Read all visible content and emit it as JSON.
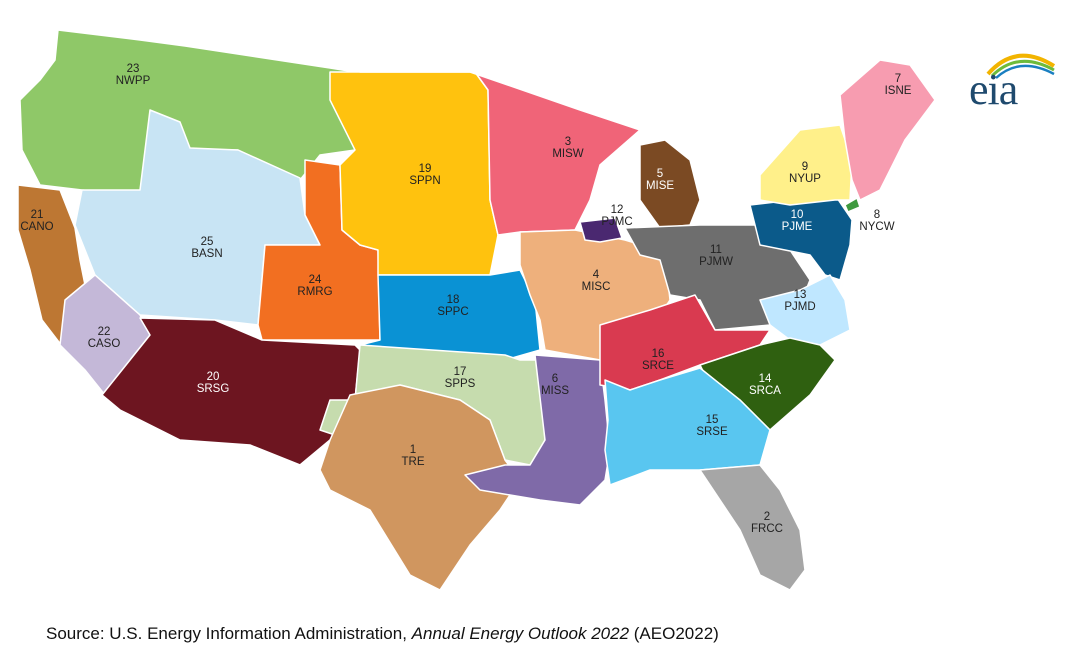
{
  "regions": [
    {
      "id": "1",
      "code": "TRE",
      "color": "#d0965f"
    },
    {
      "id": "2",
      "code": "FRCC",
      "color": "#a6a6a6"
    },
    {
      "id": "3",
      "code": "MISW",
      "color": "#f06478"
    },
    {
      "id": "4",
      "code": "MISC",
      "color": "#eeb07c"
    },
    {
      "id": "5",
      "code": "MISE",
      "color": "#7b4a23"
    },
    {
      "id": "6",
      "code": "MISS",
      "color": "#7f6aa8"
    },
    {
      "id": "7",
      "code": "ISNE",
      "color": "#f79cb0"
    },
    {
      "id": "8",
      "code": "NYCW",
      "color": "#3f9a3f"
    },
    {
      "id": "9",
      "code": "NYUP",
      "color": "#fff08a"
    },
    {
      "id": "10",
      "code": "PJME",
      "color": "#0b5a8a"
    },
    {
      "id": "11",
      "code": "PJMW",
      "color": "#6e6e6e"
    },
    {
      "id": "12",
      "code": "PJMC",
      "color": "#4a2870"
    },
    {
      "id": "13",
      "code": "PJMD",
      "color": "#bfe7ff"
    },
    {
      "id": "14",
      "code": "SRCA",
      "color": "#2f6010"
    },
    {
      "id": "15",
      "code": "SRSE",
      "color": "#59c6f0"
    },
    {
      "id": "16",
      "code": "SRCE",
      "color": "#d93a50"
    },
    {
      "id": "17",
      "code": "SPPS",
      "color": "#c6dcae"
    },
    {
      "id": "18",
      "code": "SPPC",
      "color": "#0a92d4"
    },
    {
      "id": "19",
      "code": "SPPN",
      "color": "#ffc20e"
    },
    {
      "id": "20",
      "code": "SRSG",
      "color": "#6d1520"
    },
    {
      "id": "21",
      "code": "CANO",
      "color": "#bd7733"
    },
    {
      "id": "22",
      "code": "CASO",
      "color": "#c4b8d8"
    },
    {
      "id": "23",
      "code": "NWPP",
      "color": "#8fc868"
    },
    {
      "id": "24",
      "code": "RMRG",
      "color": "#f26f21"
    },
    {
      "id": "25",
      "code": "BASN",
      "color": "#c8e4f4"
    }
  ],
  "logo": {
    "text": "eia"
  },
  "source": {
    "prefix": "Source: U.S. Energy Information Administration, ",
    "title": "Annual Energy Outlook 2022",
    "suffix": " (AEO2022)"
  }
}
